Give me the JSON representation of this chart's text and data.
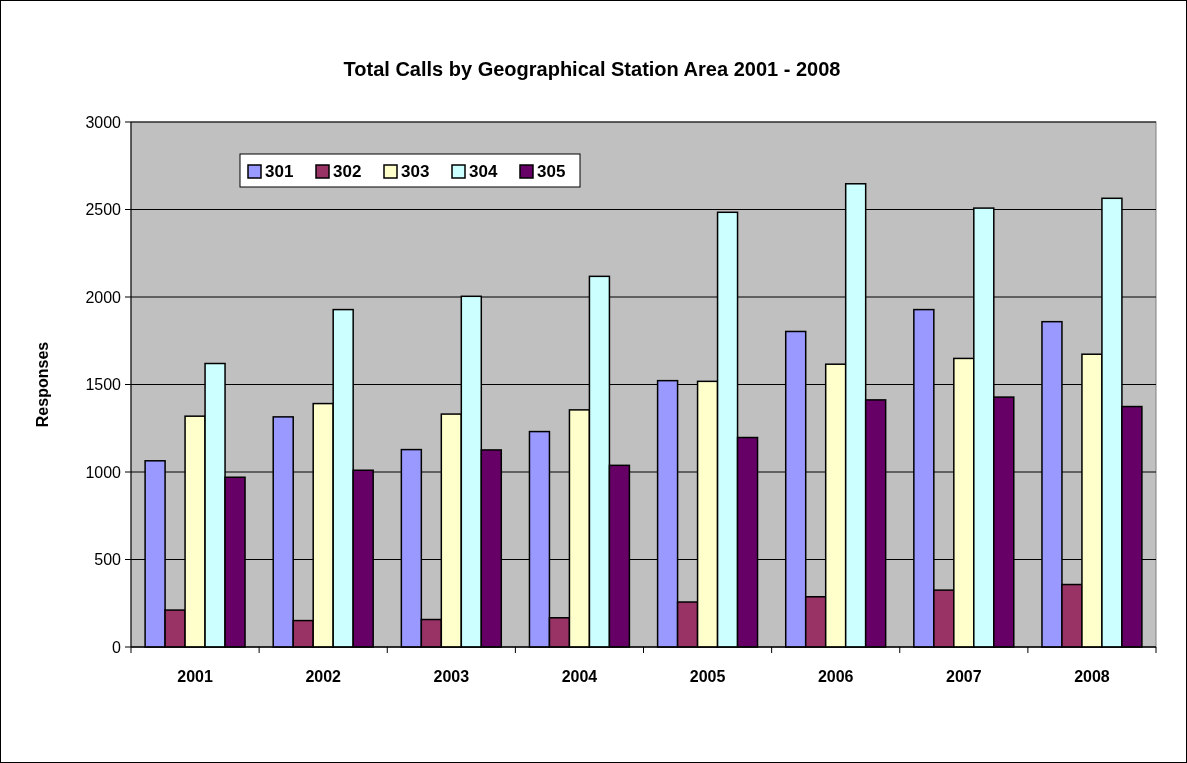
{
  "chart_data": {
    "type": "bar",
    "title": "Total Calls by Geographical Station Area 2001 - 2008",
    "ylabel": "Responses",
    "categories": [
      "2001",
      "2002",
      "2003",
      "2004",
      "2005",
      "2006",
      "2007",
      "2008"
    ],
    "series": [
      {
        "name": "301",
        "color": "#9999ff",
        "values": [
          1064,
          1315,
          1128,
          1231,
          1522,
          1803,
          1928,
          1859
        ]
      },
      {
        "name": "302",
        "color": "#993366",
        "values": [
          211,
          151,
          157,
          167,
          257,
          287,
          325,
          357
        ]
      },
      {
        "name": "303",
        "color": "#ffffcc",
        "values": [
          1319,
          1391,
          1331,
          1355,
          1518,
          1616,
          1649,
          1673
        ]
      },
      {
        "name": "304",
        "color": "#ccffff",
        "values": [
          1620,
          1928,
          2004,
          2118,
          2484,
          2647,
          2508,
          2564
        ]
      },
      {
        "name": "305",
        "color": "#660066",
        "values": [
          970,
          1010,
          1126,
          1038,
          1197,
          1412,
          1428,
          1374
        ]
      }
    ],
    "ylim": [
      0,
      3000
    ],
    "yticks": [
      0,
      500,
      1000,
      1500,
      2000,
      2500,
      3000
    ],
    "grid": "y",
    "legend": "top left"
  }
}
